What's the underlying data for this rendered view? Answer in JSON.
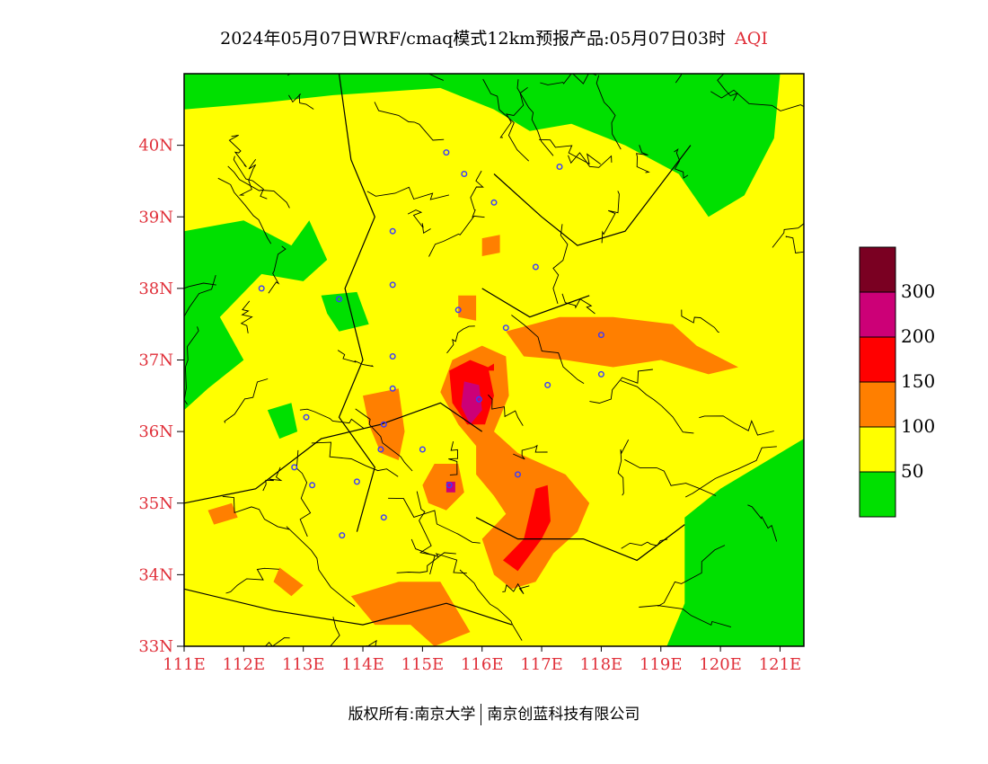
{
  "title": {
    "main": "2024年05月07日WRF/cmaq模式12km预报产品:05月07日03时",
    "variable": "AQI"
  },
  "footer": {
    "left": "版权所有:南京大学",
    "right": "南京创蓝科技有限公司"
  },
  "map": {
    "lat_range": [
      33,
      41
    ],
    "lon_range": [
      111,
      121.4
    ],
    "lat_ticks": [
      {
        "value": 33,
        "label": "33N"
      },
      {
        "value": 34,
        "label": "34N"
      },
      {
        "value": 35,
        "label": "35N"
      },
      {
        "value": 36,
        "label": "36N"
      },
      {
        "value": 37,
        "label": "37N"
      },
      {
        "value": 38,
        "label": "38N"
      },
      {
        "value": 39,
        "label": "39N"
      },
      {
        "value": 40,
        "label": "40N"
      }
    ],
    "lon_ticks": [
      {
        "value": 111,
        "label": "111E"
      },
      {
        "value": 112,
        "label": "112E"
      },
      {
        "value": 113,
        "label": "113E"
      },
      {
        "value": 114,
        "label": "114E"
      },
      {
        "value": 115,
        "label": "115E"
      },
      {
        "value": 116,
        "label": "116E"
      },
      {
        "value": 117,
        "label": "117E"
      },
      {
        "value": 118,
        "label": "118E"
      },
      {
        "value": 119,
        "label": "119E"
      },
      {
        "value": 120,
        "label": "120E"
      },
      {
        "value": 121,
        "label": "121E"
      }
    ],
    "tick_label_color": "#e0303a"
  },
  "legend": {
    "bins": [
      {
        "color": "#00e000",
        "label": "50"
      },
      {
        "color": "#ffff00",
        "label": "100"
      },
      {
        "color": "#ff7f00",
        "label": "150"
      },
      {
        "color": "#ff0000",
        "label": "200"
      },
      {
        "color": "#cc0077",
        "label": "300"
      },
      {
        "color": "#7a0022",
        "label": ""
      }
    ]
  },
  "stations": [
    [
      115.4,
      39.9
    ],
    [
      115.7,
      39.6
    ],
    [
      116.2,
      39.2
    ],
    [
      117.3,
      39.7
    ],
    [
      114.5,
      38.8
    ],
    [
      116.9,
      38.3
    ],
    [
      112.3,
      38.0
    ],
    [
      113.6,
      37.85
    ],
    [
      114.5,
      38.05
    ],
    [
      115.6,
      37.7
    ],
    [
      116.4,
      37.45
    ],
    [
      118.0,
      37.35
    ],
    [
      114.5,
      37.05
    ],
    [
      115.95,
      36.45
    ],
    [
      117.1,
      36.65
    ],
    [
      118.0,
      36.8
    ],
    [
      114.5,
      36.6
    ],
    [
      113.05,
      36.2
    ],
    [
      114.35,
      36.1
    ],
    [
      114.3,
      35.75
    ],
    [
      115.0,
      35.75
    ],
    [
      116.6,
      35.4
    ],
    [
      112.85,
      35.5
    ],
    [
      113.15,
      35.25
    ],
    [
      113.9,
      35.3
    ],
    [
      115.45,
      35.25
    ],
    [
      114.35,
      34.8
    ],
    [
      113.65,
      34.55
    ]
  ],
  "regions": {
    "green": [
      [
        [
          111,
          40.5
        ],
        [
          112.4,
          40.6
        ],
        [
          113.5,
          40.7
        ],
        [
          115.3,
          40.8
        ],
        [
          116.2,
          40.5
        ],
        [
          116.8,
          40.2
        ],
        [
          117.5,
          40.3
        ],
        [
          118.4,
          40.0
        ],
        [
          119.3,
          39.6
        ],
        [
          119.8,
          39.0
        ],
        [
          120.4,
          39.3
        ],
        [
          120.9,
          40.1
        ],
        [
          121.0,
          41
        ],
        [
          111,
          41
        ]
      ],
      [
        [
          111,
          38.8
        ],
        [
          112.0,
          38.95
        ],
        [
          112.8,
          38.6
        ],
        [
          113.1,
          38.95
        ],
        [
          113.4,
          38.4
        ],
        [
          113.0,
          38.1
        ],
        [
          112.3,
          38.2
        ],
        [
          111.6,
          37.6
        ],
        [
          112.0,
          37.0
        ],
        [
          111.4,
          36.6
        ],
        [
          111,
          36.3
        ]
      ],
      [
        [
          119.4,
          34.8
        ],
        [
          120.0,
          35.2
        ],
        [
          120.8,
          35.6
        ],
        [
          121.4,
          35.9
        ],
        [
          121.4,
          33
        ],
        [
          119.1,
          33
        ],
        [
          119.4,
          33.6
        ]
      ],
      [
        [
          113.3,
          37.9
        ],
        [
          113.9,
          37.95
        ],
        [
          114.1,
          37.5
        ],
        [
          113.6,
          37.4
        ],
        [
          113.4,
          37.65
        ]
      ],
      [
        [
          112.4,
          36.3
        ],
        [
          112.8,
          36.4
        ],
        [
          112.9,
          36.0
        ],
        [
          112.6,
          35.9
        ]
      ]
    ],
    "orange": [
      [
        [
          115.5,
          37.0
        ],
        [
          116.0,
          37.2
        ],
        [
          116.4,
          37.05
        ],
        [
          116.45,
          36.5
        ],
        [
          116.2,
          36.0
        ],
        [
          116.6,
          35.7
        ],
        [
          117.4,
          35.4
        ],
        [
          117.8,
          35.0
        ],
        [
          117.6,
          34.6
        ],
        [
          117.2,
          34.3
        ],
        [
          116.9,
          33.9
        ],
        [
          116.5,
          33.8
        ],
        [
          116.2,
          34.0
        ],
        [
          116.0,
          34.5
        ],
        [
          116.4,
          34.85
        ],
        [
          116.2,
          35.1
        ],
        [
          115.9,
          35.4
        ],
        [
          115.9,
          35.8
        ],
        [
          115.6,
          36.1
        ],
        [
          115.3,
          36.55
        ]
      ],
      [
        [
          116.4,
          37.4
        ],
        [
          117.3,
          37.6
        ],
        [
          118.2,
          37.6
        ],
        [
          119.2,
          37.5
        ],
        [
          119.6,
          37.2
        ],
        [
          120.3,
          36.9
        ],
        [
          119.8,
          36.8
        ],
        [
          119.0,
          37.0
        ],
        [
          118.2,
          36.9
        ],
        [
          117.4,
          37.0
        ],
        [
          116.7,
          37.05
        ]
      ],
      [
        [
          114.0,
          36.5
        ],
        [
          114.6,
          36.6
        ],
        [
          114.7,
          36.0
        ],
        [
          114.6,
          35.6
        ],
        [
          114.3,
          35.7
        ],
        [
          114.1,
          36.1
        ]
      ],
      [
        [
          114.6,
          33.9
        ],
        [
          115.3,
          33.9
        ],
        [
          115.8,
          33.2
        ],
        [
          115.2,
          33.0
        ],
        [
          114.8,
          33.3
        ],
        [
          114.2,
          33.3
        ],
        [
          113.8,
          33.7
        ]
      ],
      [
        [
          115.0,
          35.25
        ],
        [
          115.2,
          35.55
        ],
        [
          115.6,
          35.55
        ],
        [
          115.7,
          35.15
        ],
        [
          115.4,
          34.9
        ],
        [
          115.1,
          35.0
        ]
      ],
      [
        [
          115.6,
          37.9
        ],
        [
          115.9,
          37.9
        ],
        [
          115.9,
          37.55
        ],
        [
          115.6,
          37.6
        ]
      ],
      [
        [
          116.0,
          38.7
        ],
        [
          116.3,
          38.75
        ],
        [
          116.3,
          38.5
        ],
        [
          116.0,
          38.45
        ]
      ],
      [
        [
          111.4,
          34.9
        ],
        [
          111.8,
          35.0
        ],
        [
          111.9,
          34.8
        ],
        [
          111.5,
          34.7
        ]
      ],
      [
        [
          112.6,
          34.1
        ],
        [
          113.0,
          33.85
        ],
        [
          112.8,
          33.7
        ],
        [
          112.5,
          33.9
        ]
      ]
    ],
    "red": [
      [
        [
          115.45,
          36.85
        ],
        [
          115.8,
          37.0
        ],
        [
          116.1,
          36.9
        ],
        [
          116.2,
          36.5
        ],
        [
          116.05,
          36.1
        ],
        [
          115.75,
          36.1
        ],
        [
          115.5,
          36.4
        ]
      ],
      [
        [
          116.9,
          35.2
        ],
        [
          117.1,
          35.25
        ],
        [
          117.15,
          34.75
        ],
        [
          117.0,
          34.5
        ],
        [
          116.6,
          34.05
        ],
        [
          116.35,
          34.2
        ],
        [
          116.7,
          34.5
        ]
      ],
      [
        [
          116.1,
          36.9
        ],
        [
          116.2,
          36.95
        ],
        [
          116.2,
          36.85
        ],
        [
          116.1,
          36.85
        ]
      ]
    ],
    "magenta": [
      [
        [
          115.7,
          36.7
        ],
        [
          115.95,
          36.65
        ],
        [
          116.0,
          36.3
        ],
        [
          115.8,
          36.1
        ],
        [
          115.65,
          36.35
        ]
      ],
      [
        [
          115.4,
          35.3
        ],
        [
          115.55,
          35.3
        ],
        [
          115.55,
          35.15
        ],
        [
          115.4,
          35.15
        ]
      ]
    ]
  }
}
